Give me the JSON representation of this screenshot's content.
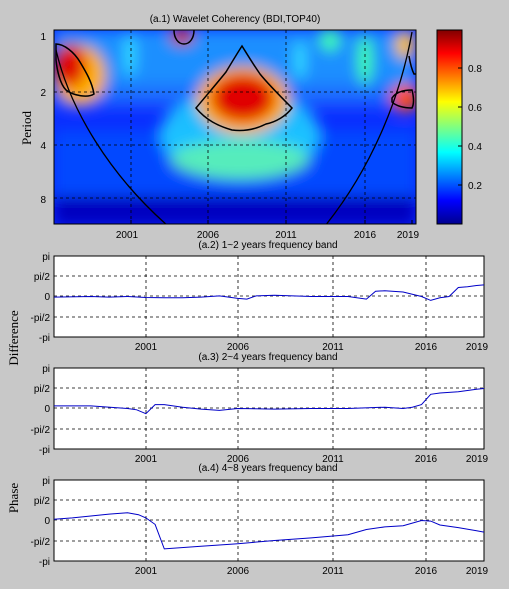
{
  "chart_data": [
    {
      "type": "heatmap",
      "title": "(a.1)  Wavelet Coherency (BDI,TOP40)",
      "ylabel": "Period",
      "x_ticks": [
        "2001",
        "2006",
        "2011",
        "2016",
        "2019"
      ],
      "y_ticks": [
        "1",
        "2",
        "4",
        "8"
      ],
      "y_scale": "log2",
      "ylim": [
        1,
        11
      ],
      "xlim": [
        1996,
        2019.4
      ],
      "colorbar": {
        "ticks": [
          "0.2",
          "0.4",
          "0.6",
          "0.8"
        ],
        "range": [
          0,
          1
        ],
        "colormap": "jet"
      },
      "high_coherence_regions": [
        {
          "x_center": 1997.3,
          "period_center": 1.5,
          "level": 0.9
        },
        {
          "x_center": 2008.2,
          "period_center": 2.2,
          "level": 0.98
        },
        {
          "x_center": 2003.2,
          "period_center": 1.0,
          "level": 0.9
        },
        {
          "x_center": 2019.0,
          "period_center": 2.0,
          "level": 0.85
        },
        {
          "x_center": 2018.5,
          "period_center": 1.0,
          "level": 0.8
        }
      ],
      "grid": true
    },
    {
      "type": "line",
      "title": "(a.2)  1~2 years frequency band",
      "ylabel": "Difference",
      "x_ticks": [
        "2001",
        "2006",
        "2011",
        "2016",
        "2019"
      ],
      "y_ticks": [
        "pi",
        "pi/2",
        "0",
        "-pi/2",
        "-pi"
      ],
      "xlim": [
        1996,
        2019.4
      ],
      "ylim": [
        -3.1416,
        3.1416
      ],
      "x": [
        1996,
        1998,
        1999,
        2000,
        2001,
        2002,
        2003,
        2004,
        2005,
        2006,
        2006.5,
        2007,
        2008,
        2009,
        2010,
        2011,
        2012,
        2013,
        2013.5,
        2014,
        2015,
        2016,
        2016.5,
        2017,
        2017.5,
        2018,
        2018.5,
        2019,
        2019.4
      ],
      "values": [
        -0.05,
        0.0,
        -0.05,
        0.0,
        -0.08,
        -0.1,
        -0.1,
        -0.05,
        0.05,
        -0.15,
        -0.2,
        0.05,
        0.1,
        0.05,
        0.0,
        0.0,
        0.0,
        -0.2,
        0.4,
        0.45,
        0.35,
        0.0,
        -0.3,
        -0.1,
        0.0,
        0.7,
        0.75,
        0.85,
        0.9
      ],
      "grid": true
    },
    {
      "type": "line",
      "title": "(a.3)  2~4 years frequency band",
      "ylabel": "",
      "x_ticks": [
        "2001",
        "2006",
        "2011",
        "2016",
        "2019"
      ],
      "y_ticks": [
        "pi",
        "pi/2",
        "0",
        "-pi/2",
        "-pi"
      ],
      "xlim": [
        1996,
        2019.4
      ],
      "ylim": [
        -3.1416,
        3.1416
      ],
      "x": [
        1996,
        1998,
        2000,
        2000.5,
        2001,
        2001.5,
        2002,
        2003,
        2004,
        2005,
        2006,
        2008,
        2010,
        2012,
        2014,
        2015,
        2015.5,
        2016,
        2016.5,
        2017,
        2018,
        2019,
        2019.4
      ],
      "values": [
        0.2,
        0.2,
        0.0,
        -0.1,
        -0.4,
        0.3,
        0.3,
        0.1,
        -0.05,
        -0.15,
        0.0,
        -0.05,
        0.0,
        0.0,
        0.1,
        0.0,
        0.1,
        0.3,
        1.1,
        1.2,
        1.3,
        1.5,
        1.55
      ],
      "grid": true
    },
    {
      "type": "line",
      "title": "(a.4)  4~8 years frequency band",
      "ylabel": "Phase",
      "x_ticks": [
        "2001",
        "2006",
        "2011",
        "2016",
        "2019"
      ],
      "y_ticks": [
        "pi",
        "pi/2",
        "0",
        "-pi/2",
        "-pi"
      ],
      "xlim": [
        1996,
        2019.4
      ],
      "ylim": [
        -3.1416,
        3.1416
      ],
      "x": [
        1996,
        1997,
        1998,
        1999,
        2000,
        2000.6,
        2001,
        2001.5,
        2002,
        2004,
        2006,
        2008,
        2010,
        2012,
        2013,
        2014,
        2015,
        2016,
        2016.5,
        2017,
        2018,
        2019,
        2019.4
      ],
      "values": [
        0.1,
        0.2,
        0.35,
        0.5,
        0.6,
        0.45,
        0.2,
        -0.3,
        -2.2,
        -2.0,
        -1.8,
        -1.55,
        -1.35,
        -1.1,
        -0.7,
        -0.5,
        -0.4,
        0.0,
        -0.05,
        -0.35,
        -0.55,
        -0.8,
        -0.9
      ],
      "grid": true
    }
  ]
}
